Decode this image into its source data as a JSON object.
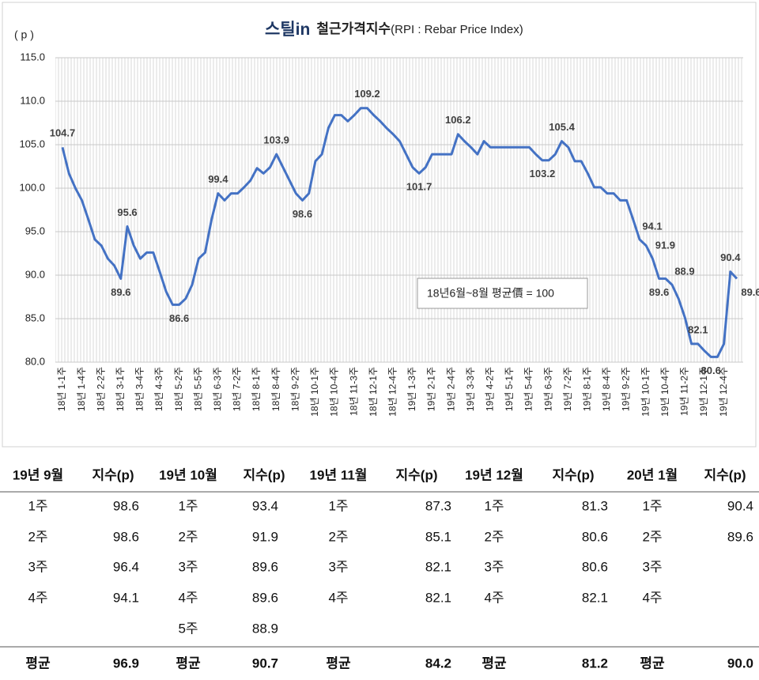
{
  "chart_data": {
    "type": "line",
    "brand": "스틸in",
    "title": "철근가격지수",
    "subtitle": "(RPI : Rebar Price Index)",
    "y_label": "( p )",
    "annotation": "18년6월~8월 평균價 = 100",
    "color": "#4472c4",
    "grid": true,
    "ylim": [
      80,
      115
    ],
    "yticks": [
      {
        "value": 80,
        "label": "80.0"
      },
      {
        "value": 85,
        "label": "85.0"
      },
      {
        "value": 90,
        "label": "90.0"
      },
      {
        "value": 95,
        "label": "95.0"
      },
      {
        "value": 100,
        "label": "100.0"
      },
      {
        "value": 105,
        "label": "105.0"
      },
      {
        "value": 110,
        "label": "110.0"
      },
      {
        "value": 115,
        "label": "115.0"
      }
    ],
    "categories": [
      "18년 1-1주",
      null,
      null,
      "18년 1-4주",
      null,
      null,
      "18년 2-2주",
      null,
      null,
      "18년 3-1주",
      null,
      null,
      "18년 3-4주",
      null,
      null,
      "18년 4-3주",
      null,
      null,
      "18년 5-2주",
      null,
      null,
      "18년 5-5주",
      null,
      null,
      "18년 6-3주",
      null,
      null,
      "18년 7-2주",
      null,
      null,
      "18년 8-1주",
      null,
      null,
      "18년 8-4주",
      null,
      null,
      "18년 9-2주",
      null,
      null,
      "18년 10-1주",
      null,
      null,
      "18년 10-4주",
      null,
      null,
      "18년 11-3주",
      null,
      null,
      "18년 12-1주",
      null,
      null,
      "18년 12-4주",
      null,
      null,
      "19년 1-3주",
      null,
      null,
      "19년 2-1주",
      null,
      null,
      "19년 2-4주",
      null,
      null,
      "19년 3-3주",
      null,
      null,
      "19년 4-2주",
      null,
      null,
      "19년 5-1주",
      null,
      null,
      "19년 5-4주",
      null,
      null,
      "19년 6-3주",
      null,
      null,
      "19년 7-2주",
      null,
      null,
      "19년 8-1주",
      null,
      null,
      "19년 8-4주",
      null,
      null,
      "19년 9-2주",
      null,
      null,
      "19년 10-1주",
      null,
      null,
      "19년 10-4주",
      null,
      null,
      "19년 11-2주",
      null,
      null,
      "19년 12-1주",
      null,
      null,
      "19년 12-4주",
      null,
      null
    ],
    "values": [
      104.7,
      101.7,
      100,
      98.6,
      96.4,
      94.1,
      93.4,
      91.9,
      91.1,
      89.6,
      95.6,
      93.4,
      91.9,
      92.6,
      92.6,
      90.4,
      88.1,
      86.6,
      86.6,
      87.3,
      88.9,
      91.9,
      92.6,
      96.4,
      99.4,
      98.6,
      99.4,
      99.4,
      100.1,
      100.9,
      102.3,
      101.7,
      102.4,
      103.9,
      102.4,
      100.9,
      99.4,
      98.6,
      99.4,
      103.1,
      103.9,
      106.9,
      108.4,
      108.4,
      107.7,
      108.4,
      109.2,
      109.2,
      108.4,
      107.7,
      106.9,
      106.2,
      105.4,
      103.9,
      102.4,
      101.7,
      102.4,
      103.9,
      103.9,
      103.9,
      103.9,
      106.2,
      105.4,
      104.7,
      103.9,
      105.4,
      104.7,
      104.7,
      104.7,
      104.7,
      104.7,
      104.7,
      104.7,
      103.9,
      103.2,
      103.2,
      103.9,
      105.4,
      104.7,
      103.1,
      103.1,
      101.7,
      100.1,
      100.1,
      99.4,
      99.4,
      98.6,
      98.6,
      96.4,
      94.1,
      93.4,
      91.9,
      89.6,
      89.6,
      88.9,
      87.3,
      85.1,
      82.1,
      82.1,
      81.3,
      80.6,
      80.6,
      82.1,
      90.4,
      89.6
    ],
    "labeled_points": [
      0,
      9,
      10,
      18,
      24,
      33,
      37,
      47,
      55,
      61,
      74,
      77,
      89,
      91,
      92,
      94,
      98,
      100,
      103,
      104
    ]
  },
  "table": {
    "columns": [
      {
        "month": "19년 9월",
        "unit": "지수(p)",
        "rows": [
          [
            "1주",
            "98.6"
          ],
          [
            "2주",
            "98.6"
          ],
          [
            "3주",
            "96.4"
          ],
          [
            "4주",
            "94.1"
          ]
        ],
        "average": [
          "평균",
          "96.9"
        ]
      },
      {
        "month": "19년 10월",
        "unit": "지수(p)",
        "rows": [
          [
            "1주",
            "93.4"
          ],
          [
            "2주",
            "91.9"
          ],
          [
            "3주",
            "89.6"
          ],
          [
            "4주",
            "89.6"
          ],
          [
            "5주",
            "88.9"
          ]
        ],
        "average": [
          "평균",
          "90.7"
        ]
      },
      {
        "month": "19년 11월",
        "unit": "지수(p)",
        "rows": [
          [
            "1주",
            "87.3"
          ],
          [
            "2주",
            "85.1"
          ],
          [
            "3주",
            "82.1"
          ],
          [
            "4주",
            "82.1"
          ]
        ],
        "average": [
          "평균",
          "84.2"
        ]
      },
      {
        "month": "19년 12월",
        "unit": "지수(p)",
        "rows": [
          [
            "1주",
            "81.3"
          ],
          [
            "2주",
            "80.6"
          ],
          [
            "3주",
            "80.6"
          ],
          [
            "4주",
            "82.1"
          ]
        ],
        "average": [
          "평균",
          "81.2"
        ]
      },
      {
        "month": "20년 1월",
        "unit": "지수(p)",
        "rows": [
          [
            "1주",
            "90.4"
          ],
          [
            "2주",
            "89.6"
          ],
          [
            "3주"
          ],
          [
            "4주"
          ]
        ],
        "average": [
          "평균",
          "90.0"
        ]
      }
    ]
  }
}
